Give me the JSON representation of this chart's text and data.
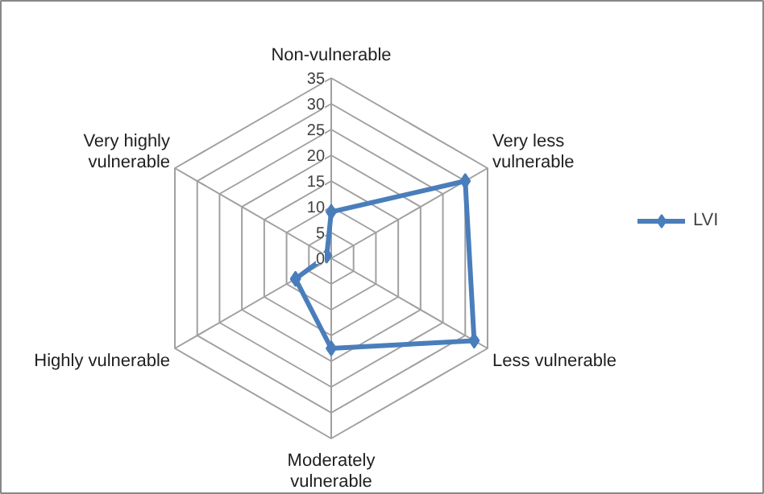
{
  "chart_data": {
    "type": "radar",
    "categories": [
      "Non-vulnerable",
      "Very less vulnerable",
      "Less vulnerable",
      "Moderately vulnerable",
      "Highly vulnerable",
      "Very highly vulnerable"
    ],
    "series": [
      {
        "name": "LVI",
        "color": "#4a7ebb",
        "values": [
          9,
          30,
          32,
          17.5,
          8,
          1
        ]
      }
    ],
    "ylim": [
      0,
      35
    ],
    "yticks": [
      0,
      5,
      10,
      15,
      20,
      25,
      30,
      35
    ],
    "marker": "diamond",
    "legend": "right"
  }
}
